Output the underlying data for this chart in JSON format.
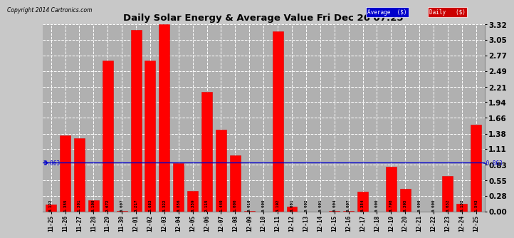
{
  "title": "Daily Solar Energy & Average Value Fri Dec 26 07:25",
  "copyright": "Copyright 2014 Cartronics.com",
  "average_value": 0.863,
  "categories": [
    "11-25",
    "11-26",
    "11-27",
    "11-28",
    "11-29",
    "11-30",
    "12-01",
    "12-02",
    "12-03",
    "12-04",
    "12-05",
    "12-06",
    "12-07",
    "12-08",
    "12-09",
    "12-10",
    "12-11",
    "12-12",
    "12-13",
    "12-14",
    "12-15",
    "12-16",
    "12-17",
    "12-18",
    "12-19",
    "12-20",
    "12-21",
    "12-22",
    "12-23",
    "12-24",
    "12-25"
  ],
  "values": [
    0.122,
    1.355,
    1.301,
    0.198,
    2.672,
    0.007,
    3.217,
    2.683,
    3.322,
    0.856,
    0.359,
    2.115,
    1.449,
    1.0,
    0.01,
    0.0,
    3.192,
    0.081,
    0.002,
    0.001,
    0.004,
    0.007,
    0.354,
    0.0,
    0.798,
    0.395,
    0.0,
    0.0,
    0.632,
    0.132,
    1.543
  ],
  "bar_color": "#ff0000",
  "avg_line_color": "#0000cc",
  "ylim": [
    0.0,
    3.32
  ],
  "yticks": [
    0.0,
    0.28,
    0.55,
    0.83,
    1.11,
    1.38,
    1.66,
    1.94,
    2.21,
    2.49,
    2.77,
    3.05,
    3.32
  ],
  "grid_color": "#ffffff",
  "plot_bg_color": "#aaaaaa",
  "legend_avg_bg": "#0000cc",
  "legend_daily_bg": "#cc0000",
  "avg_label": "Average  ($)",
  "daily_label": "Daily   ($)"
}
